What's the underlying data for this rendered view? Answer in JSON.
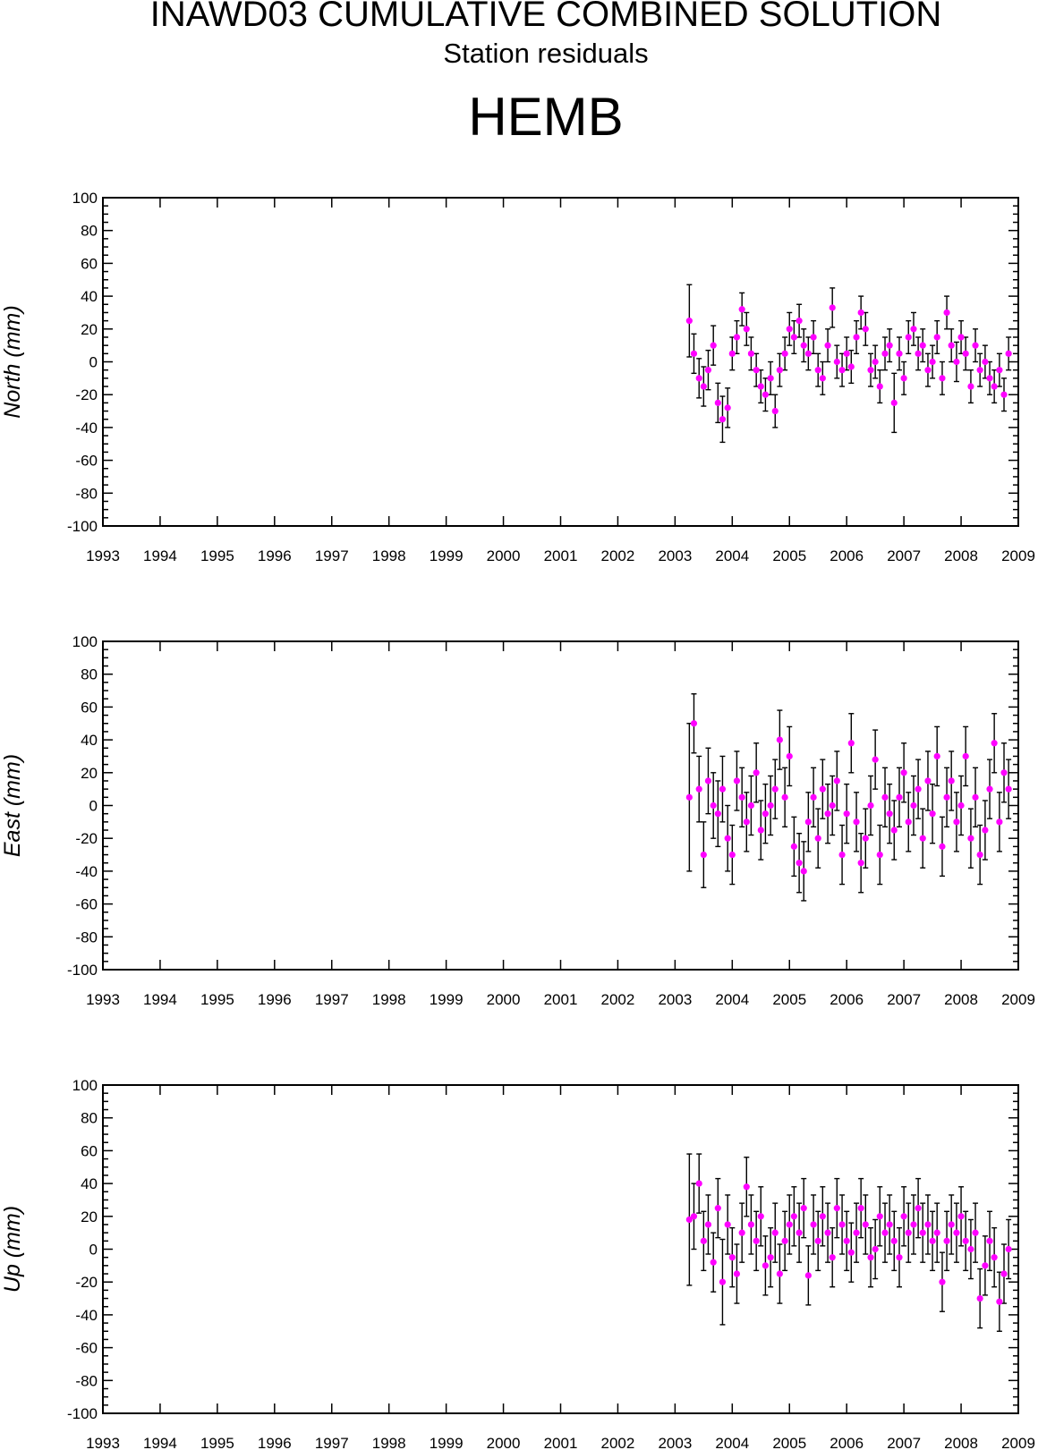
{
  "header": {
    "title": "INAWD03 CUMULATIVE COMBINED SOLUTION",
    "subtitle": "Station residuals",
    "station": "HEMB"
  },
  "chart_data": [
    {
      "type": "scatter",
      "panel": "north",
      "ylabel": "North (mm)",
      "xlim": [
        1993,
        2009
      ],
      "ylim": [
        -100,
        100
      ],
      "x_ticks": [
        1993,
        1994,
        1995,
        1996,
        1997,
        1998,
        1999,
        2000,
        2001,
        2002,
        2003,
        2004,
        2005,
        2006,
        2007,
        2008,
        2009
      ],
      "y_ticks": [
        -100,
        -80,
        -60,
        -40,
        -20,
        0,
        20,
        40,
        60,
        80,
        100
      ],
      "marker_color": "#ff00ff",
      "errorbar_color": "#000000",
      "x": [
        2003.25,
        2003.33,
        2003.42,
        2003.5,
        2003.58,
        2003.67,
        2003.75,
        2003.83,
        2003.92,
        2004.0,
        2004.08,
        2004.17,
        2004.25,
        2004.33,
        2004.42,
        2004.5,
        2004.58,
        2004.67,
        2004.75,
        2004.83,
        2004.92,
        2005.0,
        2005.08,
        2005.17,
        2005.25,
        2005.33,
        2005.42,
        2005.5,
        2005.58,
        2005.67,
        2005.75,
        2005.83,
        2005.92,
        2006.0,
        2006.08,
        2006.17,
        2006.25,
        2006.33,
        2006.42,
        2006.5,
        2006.58,
        2006.67,
        2006.75,
        2006.83,
        2006.92,
        2007.0,
        2007.08,
        2007.17,
        2007.25,
        2007.33,
        2007.42,
        2007.5,
        2007.58,
        2007.67,
        2007.75,
        2007.83,
        2007.92,
        2008.0,
        2008.08,
        2008.17,
        2008.25,
        2008.33,
        2008.42,
        2008.5,
        2008.58,
        2008.67,
        2008.75,
        2008.83
      ],
      "y": [
        25,
        5,
        -10,
        -15,
        -5,
        10,
        -25,
        -35,
        -28,
        5,
        15,
        32,
        20,
        5,
        -5,
        -15,
        -20,
        -10,
        -30,
        -5,
        5,
        20,
        15,
        25,
        10,
        5,
        15,
        -5,
        -10,
        10,
        33,
        0,
        -5,
        5,
        -3,
        15,
        30,
        20,
        -5,
        0,
        -15,
        5,
        10,
        -25,
        5,
        -10,
        15,
        20,
        5,
        10,
        -5,
        0,
        15,
        -10,
        30,
        10,
        0,
        15,
        5,
        -15,
        10,
        -5,
        0,
        -10,
        -15,
        -5,
        -20,
        5
      ],
      "err": [
        22,
        12,
        12,
        12,
        12,
        12,
        12,
        14,
        12,
        10,
        10,
        10,
        10,
        10,
        10,
        10,
        10,
        10,
        10,
        10,
        10,
        10,
        10,
        10,
        10,
        10,
        10,
        10,
        10,
        10,
        12,
        10,
        10,
        10,
        10,
        10,
        10,
        10,
        10,
        10,
        10,
        10,
        10,
        18,
        10,
        10,
        10,
        10,
        10,
        10,
        10,
        10,
        10,
        10,
        10,
        10,
        12,
        10,
        10,
        10,
        10,
        10,
        10,
        10,
        10,
        10,
        10,
        10
      ]
    },
    {
      "type": "scatter",
      "panel": "east",
      "ylabel": "East (mm)",
      "xlim": [
        1993,
        2009
      ],
      "ylim": [
        -100,
        100
      ],
      "x_ticks": [
        1993,
        1994,
        1995,
        1996,
        1997,
        1998,
        1999,
        2000,
        2001,
        2002,
        2003,
        2004,
        2005,
        2006,
        2007,
        2008,
        2009
      ],
      "y_ticks": [
        -100,
        -80,
        -60,
        -40,
        -20,
        0,
        20,
        40,
        60,
        80,
        100
      ],
      "marker_color": "#ff00ff",
      "errorbar_color": "#000000",
      "x": [
        2003.25,
        2003.33,
        2003.42,
        2003.5,
        2003.58,
        2003.67,
        2003.75,
        2003.83,
        2003.92,
        2004.0,
        2004.08,
        2004.17,
        2004.25,
        2004.33,
        2004.42,
        2004.5,
        2004.58,
        2004.67,
        2004.75,
        2004.83,
        2004.92,
        2005.0,
        2005.08,
        2005.17,
        2005.25,
        2005.33,
        2005.42,
        2005.5,
        2005.58,
        2005.67,
        2005.75,
        2005.83,
        2005.92,
        2006.0,
        2006.08,
        2006.17,
        2006.25,
        2006.33,
        2006.42,
        2006.5,
        2006.58,
        2006.67,
        2006.75,
        2006.83,
        2006.92,
        2007.0,
        2007.08,
        2007.17,
        2007.25,
        2007.33,
        2007.42,
        2007.5,
        2007.58,
        2007.67,
        2007.75,
        2007.83,
        2007.92,
        2008.0,
        2008.08,
        2008.17,
        2008.25,
        2008.33,
        2008.42,
        2008.5,
        2008.58,
        2008.67,
        2008.75,
        2008.83
      ],
      "y": [
        5,
        50,
        10,
        -30,
        15,
        0,
        -5,
        10,
        -20,
        -30,
        15,
        5,
        -10,
        0,
        20,
        -15,
        -5,
        0,
        10,
        40,
        5,
        30,
        -25,
        -35,
        -40,
        -10,
        5,
        -20,
        10,
        -5,
        0,
        15,
        -30,
        -5,
        38,
        -10,
        -35,
        -20,
        0,
        28,
        -30,
        5,
        -5,
        -15,
        5,
        20,
        -10,
        0,
        10,
        -20,
        15,
        -5,
        30,
        -25,
        5,
        15,
        -10,
        0,
        30,
        -20,
        5,
        -30,
        -15,
        10,
        38,
        -10,
        20,
        10
      ],
      "err": [
        45,
        18,
        20,
        20,
        20,
        20,
        20,
        20,
        20,
        18,
        18,
        18,
        18,
        18,
        18,
        18,
        18,
        18,
        18,
        18,
        18,
        18,
        18,
        18,
        18,
        18,
        18,
        18,
        18,
        18,
        18,
        18,
        18,
        18,
        18,
        18,
        18,
        18,
        18,
        18,
        18,
        18,
        18,
        18,
        18,
        18,
        18,
        18,
        18,
        18,
        18,
        18,
        18,
        18,
        18,
        18,
        18,
        18,
        18,
        18,
        18,
        18,
        18,
        18,
        18,
        18,
        18,
        18
      ]
    },
    {
      "type": "scatter",
      "panel": "up",
      "ylabel": "Up (mm)",
      "xlim": [
        1993,
        2009
      ],
      "ylim": [
        -100,
        100
      ],
      "x_ticks": [
        1993,
        1994,
        1995,
        1996,
        1997,
        1998,
        1999,
        2000,
        2001,
        2002,
        2003,
        2004,
        2005,
        2006,
        2007,
        2008,
        2009
      ],
      "y_ticks": [
        -100,
        -80,
        -60,
        -40,
        -20,
        0,
        20,
        40,
        60,
        80,
        100
      ],
      "marker_color": "#ff00ff",
      "errorbar_color": "#000000",
      "x": [
        2003.25,
        2003.33,
        2003.42,
        2003.5,
        2003.58,
        2003.67,
        2003.75,
        2003.83,
        2003.92,
        2004.0,
        2004.08,
        2004.17,
        2004.25,
        2004.33,
        2004.42,
        2004.5,
        2004.58,
        2004.67,
        2004.75,
        2004.83,
        2004.92,
        2005.0,
        2005.08,
        2005.17,
        2005.25,
        2005.33,
        2005.42,
        2005.5,
        2005.58,
        2005.67,
        2005.75,
        2005.83,
        2005.92,
        2006.0,
        2006.08,
        2006.17,
        2006.25,
        2006.33,
        2006.42,
        2006.5,
        2006.58,
        2006.67,
        2006.75,
        2006.83,
        2006.92,
        2007.0,
        2007.08,
        2007.17,
        2007.25,
        2007.33,
        2007.42,
        2007.5,
        2007.58,
        2007.67,
        2007.75,
        2007.83,
        2007.92,
        2008.0,
        2008.08,
        2008.17,
        2008.25,
        2008.33,
        2008.42,
        2008.5,
        2008.58,
        2008.67,
        2008.75,
        2008.83
      ],
      "y": [
        18,
        20,
        40,
        5,
        15,
        -8,
        25,
        -20,
        15,
        -5,
        -15,
        10,
        38,
        15,
        5,
        20,
        -10,
        -5,
        10,
        -15,
        5,
        15,
        20,
        10,
        25,
        -16,
        15,
        5,
        20,
        10,
        -5,
        25,
        15,
        5,
        -2,
        10,
        25,
        15,
        -5,
        0,
        20,
        10,
        15,
        5,
        -5,
        20,
        10,
        15,
        25,
        10,
        15,
        5,
        10,
        -20,
        5,
        15,
        10,
        20,
        5,
        0,
        10,
        -30,
        -10,
        5,
        -5,
        -32,
        -15,
        0
      ],
      "err": [
        40,
        20,
        18,
        18,
        18,
        18,
        18,
        26,
        18,
        18,
        18,
        18,
        18,
        18,
        18,
        18,
        18,
        18,
        18,
        18,
        18,
        18,
        18,
        18,
        18,
        18,
        18,
        18,
        18,
        18,
        18,
        18,
        18,
        18,
        18,
        18,
        18,
        18,
        18,
        18,
        18,
        18,
        18,
        18,
        18,
        18,
        18,
        18,
        18,
        18,
        18,
        18,
        18,
        18,
        18,
        18,
        18,
        18,
        18,
        18,
        18,
        18,
        18,
        18,
        18,
        18,
        18,
        18
      ]
    }
  ]
}
